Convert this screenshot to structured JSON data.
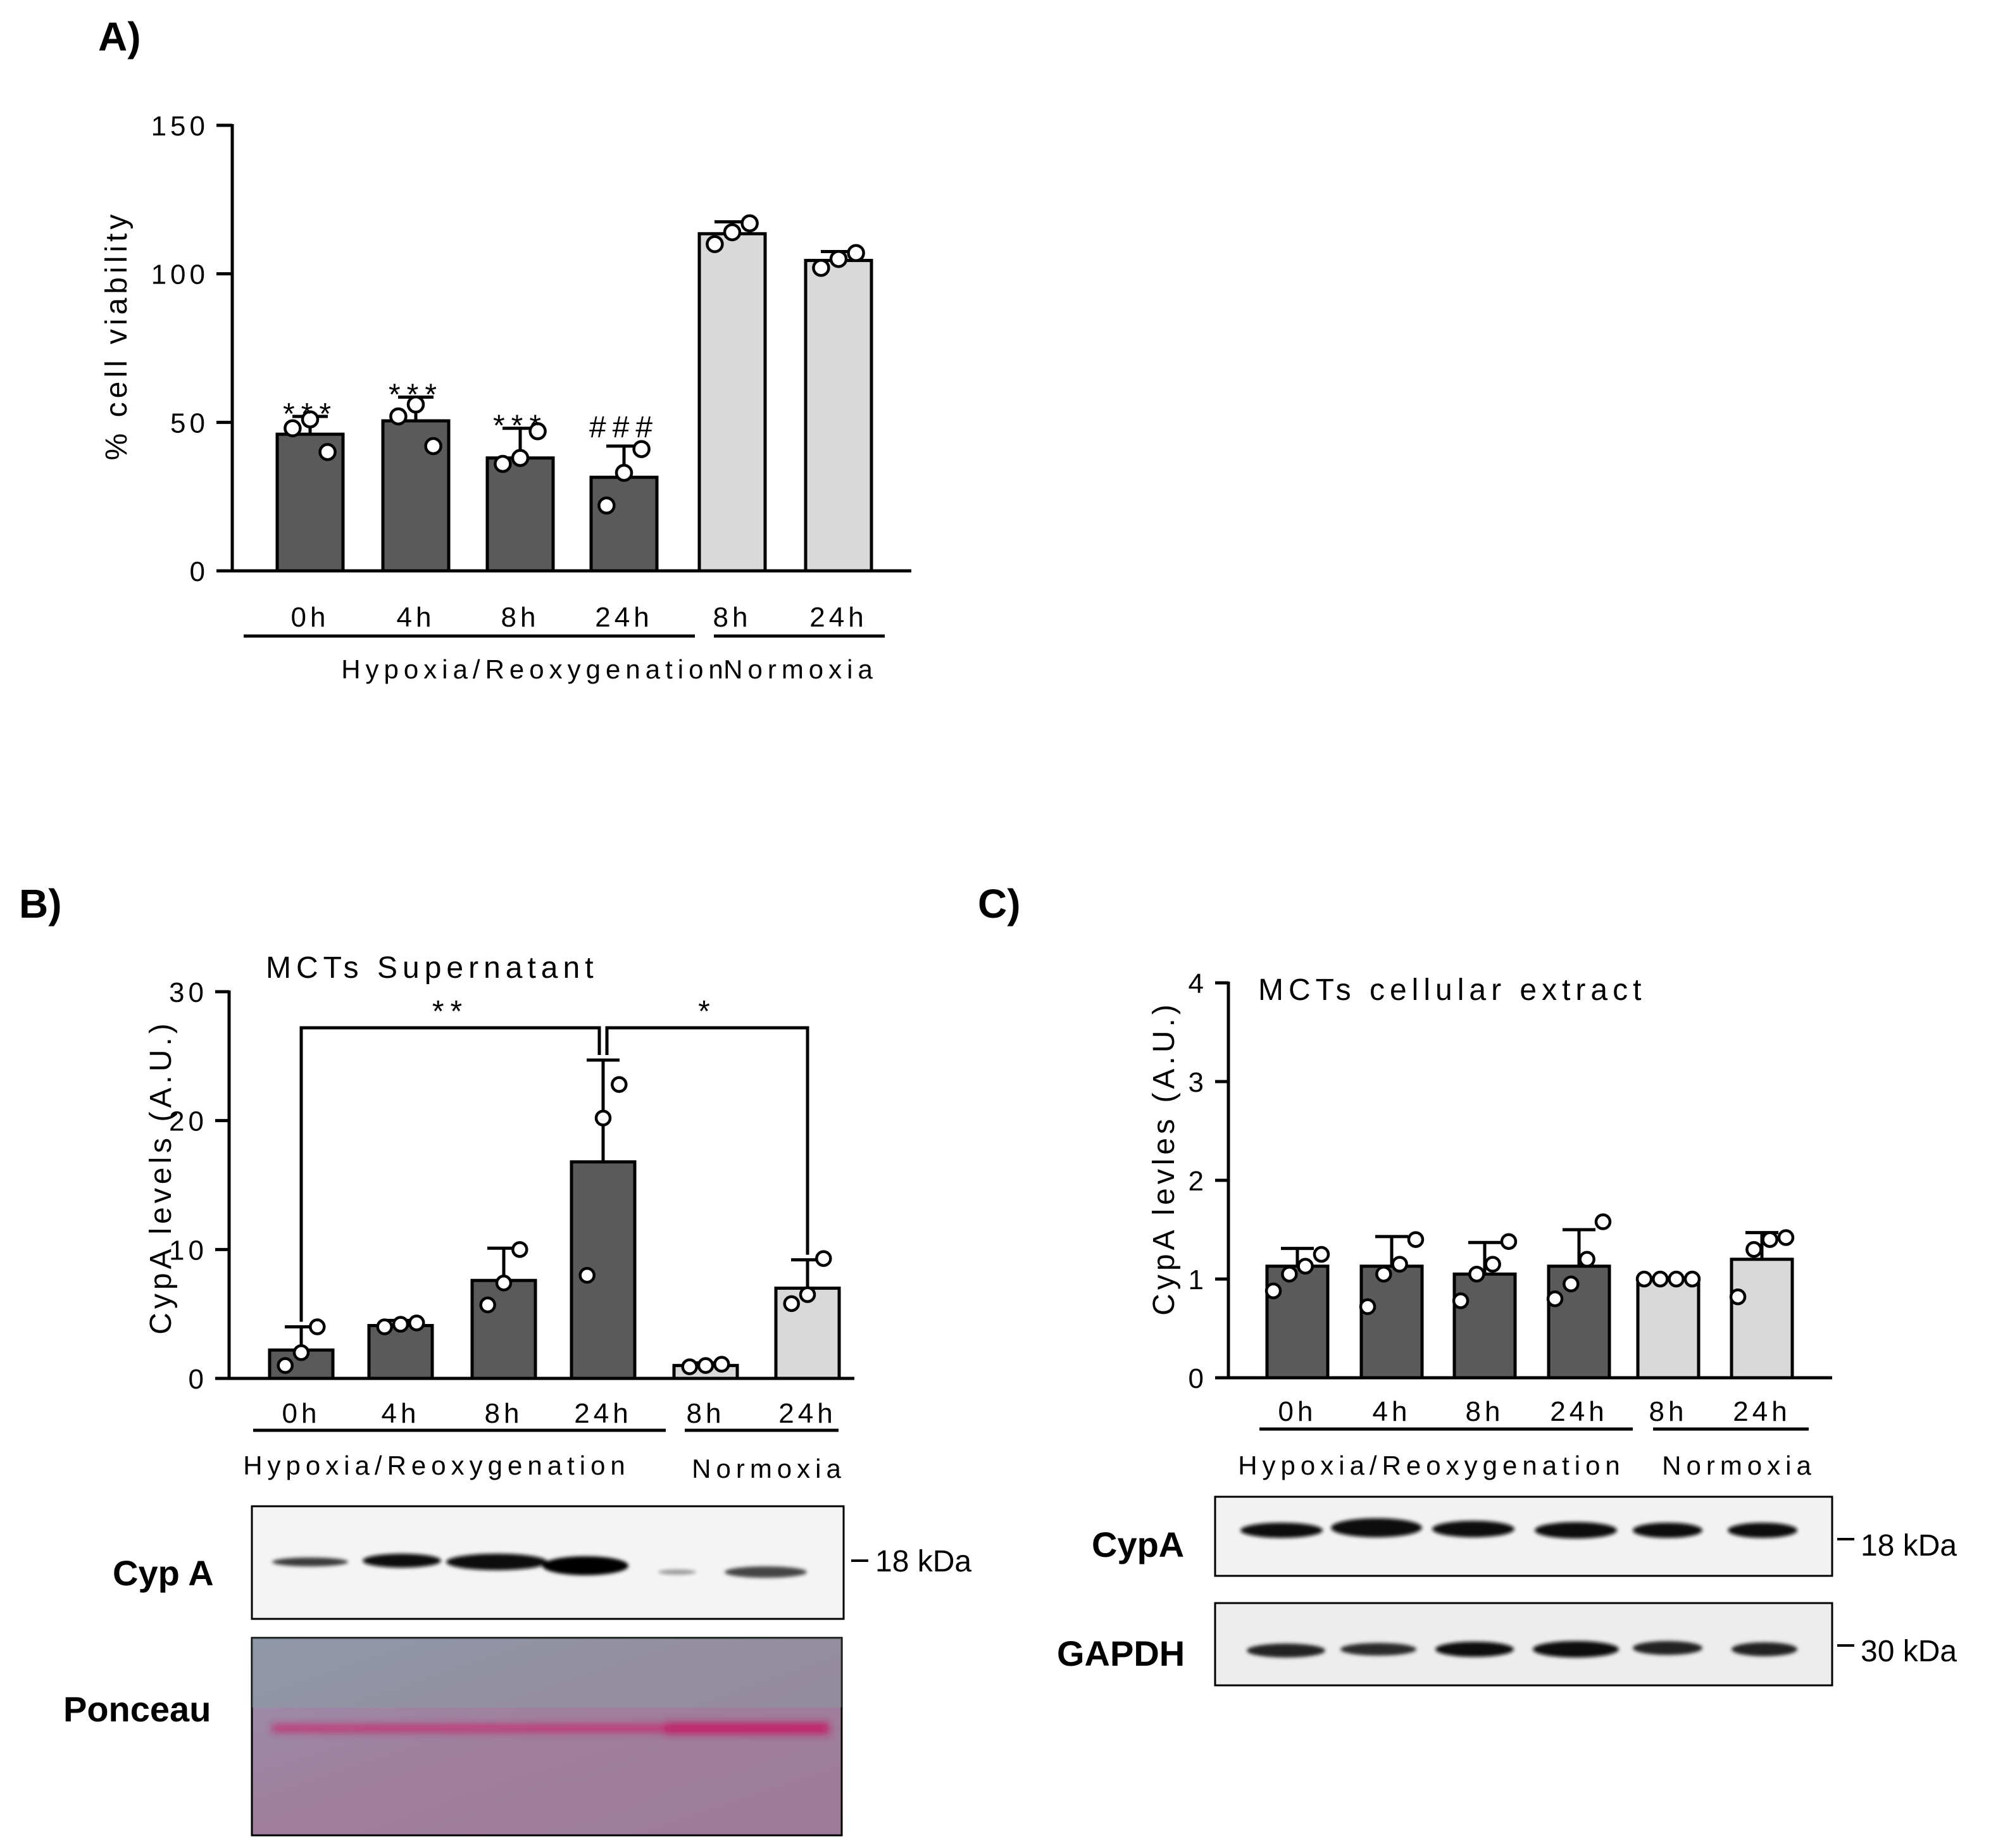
{
  "panels": {
    "a": "A)",
    "b": "B)",
    "c": "C)"
  },
  "colors": {
    "hr_bar": "#5a5a5a",
    "normoxia_bar": "#d9d9d9"
  },
  "chart_data": [
    {
      "id": "A",
      "type": "bar",
      "title": "",
      "ylabel": "% cell viability",
      "ylim": [
        0,
        150
      ],
      "yticks": [
        0,
        50,
        100,
        150
      ],
      "categories": [
        "0h",
        "4h",
        "8h",
        "24h",
        "8h",
        "24h"
      ],
      "groups": [
        {
          "label": "Hypoxia/Reoxygenation",
          "categories": [
            0,
            1,
            2,
            3
          ]
        },
        {
          "label": "Normoxia",
          "categories": [
            4,
            5
          ]
        }
      ],
      "values": [
        46,
        50.5,
        38,
        31.5,
        113.5,
        104.5
      ],
      "errors": [
        6,
        8,
        10,
        10.5,
        4,
        3
      ],
      "points": [
        [
          48,
          51,
          40
        ],
        [
          52,
          56,
          42
        ],
        [
          36,
          38,
          47
        ],
        [
          22,
          33,
          41
        ],
        [
          110,
          114,
          117
        ],
        [
          102,
          105,
          107
        ]
      ],
      "annotations": [
        "***",
        "***",
        "***",
        "###",
        "",
        ""
      ]
    },
    {
      "id": "B",
      "type": "bar",
      "title": "MCTs Supernatant",
      "ylabel": "CypA levels (A.U.)",
      "ylim": [
        0,
        30
      ],
      "yticks": [
        0,
        10,
        20,
        30
      ],
      "categories": [
        "0h",
        "4h",
        "8h",
        "24h",
        "8h",
        "24h"
      ],
      "groups": [
        {
          "label": "Hypoxia/Reoxygenation",
          "categories": [
            0,
            1,
            2,
            3
          ]
        },
        {
          "label": "Normoxia",
          "categories": [
            4,
            5
          ]
        }
      ],
      "values": [
        2.2,
        4.1,
        7.6,
        16.8,
        1.0,
        7.0
      ],
      "errors": [
        1.8,
        0.4,
        2.5,
        7.9,
        0.2,
        2.2
      ],
      "points": [
        [
          1.0,
          2.0,
          4.0
        ],
        [
          4.0,
          4.2,
          4.3
        ],
        [
          5.7,
          7.4,
          10.0
        ],
        [
          8.0,
          20.2,
          22.8
        ],
        [
          0.9,
          1.0,
          1.1
        ],
        [
          5.8,
          6.5,
          9.3
        ]
      ],
      "brackets": [
        {
          "from": 0,
          "to": 3,
          "label": "**"
        },
        {
          "from": 3,
          "to": 5,
          "label": "*"
        }
      ]
    },
    {
      "id": "C",
      "type": "bar",
      "title": "MCTs cellular extract",
      "ylabel": "CypA levles (A.U.)",
      "ylim": [
        0,
        4
      ],
      "yticks": [
        0,
        1,
        2,
        3,
        4
      ],
      "categories": [
        "0h",
        "4h",
        "8h",
        "24h",
        "8h",
        "24h"
      ],
      "groups": [
        {
          "label": "Hypoxia/Reoxygenation",
          "categories": [
            0,
            1,
            2,
            3
          ]
        },
        {
          "label": "Normoxia",
          "categories": [
            4,
            5
          ]
        }
      ],
      "values": [
        1.13,
        1.13,
        1.05,
        1.13,
        1.0,
        1.2
      ],
      "errors": [
        0.18,
        0.3,
        0.32,
        0.37,
        0.0,
        0.27
      ],
      "points": [
        [
          0.88,
          1.05,
          1.13,
          1.25
        ],
        [
          0.72,
          1.05,
          1.15,
          1.4
        ],
        [
          0.78,
          1.05,
          1.15,
          1.38
        ],
        [
          0.8,
          0.95,
          1.2,
          1.58
        ],
        [
          1.0,
          1.0,
          1.0,
          1.0
        ],
        [
          0.82,
          1.3,
          1.4,
          1.42
        ]
      ]
    }
  ],
  "blots": {
    "b": {
      "cypa_label": "Cyp A",
      "cypa_marker": "18 kDa",
      "ponceau_label": "Ponceau"
    },
    "c": {
      "cypa_label": "CypA",
      "cypa_marker": "18 kDa",
      "gapdh_label": "GAPDH",
      "gapdh_marker": "30 kDa"
    }
  }
}
